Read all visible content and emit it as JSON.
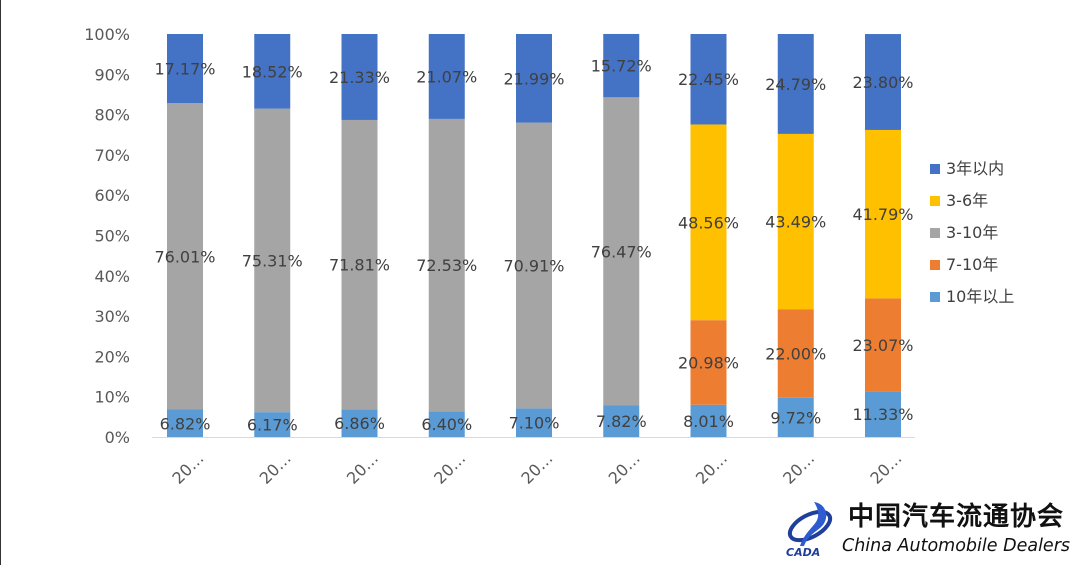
{
  "chart_data": {
    "type": "bar",
    "stacked": true,
    "percent_stacked": true,
    "categories": [
      "20…",
      "20…",
      "20…",
      "20…",
      "20…",
      "20…",
      "20…",
      "20…",
      "20…"
    ],
    "series": [
      {
        "name": "10年以上",
        "color": "#5b9bd5",
        "values": [
          6.82,
          6.17,
          6.86,
          6.4,
          7.1,
          7.82,
          8.01,
          9.72,
          11.33
        ],
        "labels": [
          "6.82%",
          "6.17%",
          "6.86%",
          "6.40%",
          "7.10%",
          "7.82%",
          "8.01%",
          "9.72%",
          "11.33%"
        ]
      },
      {
        "name": "7-10年",
        "color": "#ed7d31",
        "values": [
          0,
          0,
          0,
          0,
          0,
          0,
          20.98,
          22.0,
          23.07
        ],
        "labels": [
          "",
          "",
          "",
          "",
          "",
          "",
          "20.98%",
          "22.00%",
          "23.07%"
        ]
      },
      {
        "name": "3-10年",
        "color": "#a5a5a5",
        "values": [
          76.01,
          75.31,
          71.81,
          72.53,
          70.91,
          76.47,
          0,
          0,
          0
        ],
        "labels": [
          "76.01%",
          "75.31%",
          "71.81%",
          "72.53%",
          "70.91%",
          "76.47%",
          "",
          "",
          ""
        ]
      },
      {
        "name": "3-6年",
        "color": "#ffc000",
        "values": [
          0,
          0,
          0,
          0,
          0,
          0,
          48.56,
          43.49,
          41.79
        ],
        "labels": [
          "",
          "",
          "",
          "",
          "",
          "",
          "48.56%",
          "43.49%",
          "41.79%"
        ]
      },
      {
        "name": "3年以内",
        "color": "#4472c4",
        "values": [
          17.17,
          18.52,
          21.33,
          21.07,
          21.99,
          15.72,
          22.45,
          24.79,
          23.8
        ],
        "labels": [
          "17.17%",
          "18.52%",
          "21.33%",
          "21.07%",
          "21.99%",
          "15.72%",
          "22.45%",
          "24.79%",
          "23.80%"
        ]
      }
    ],
    "legend_order": [
      "3年以内",
      "3-6年",
      "3-10年",
      "7-10年",
      "10年以上"
    ],
    "yticks": [
      "0%",
      "10%",
      "20%",
      "30%",
      "40%",
      "50%",
      "60%",
      "70%",
      "80%",
      "90%",
      "100%"
    ],
    "ylim": [
      0,
      100
    ],
    "legend_position": "right",
    "grid": false
  },
  "logo": {
    "name_cn": "中国汽车流通协会",
    "name_en": "China  Automobile Dealers",
    "mark_text": "CADA"
  }
}
